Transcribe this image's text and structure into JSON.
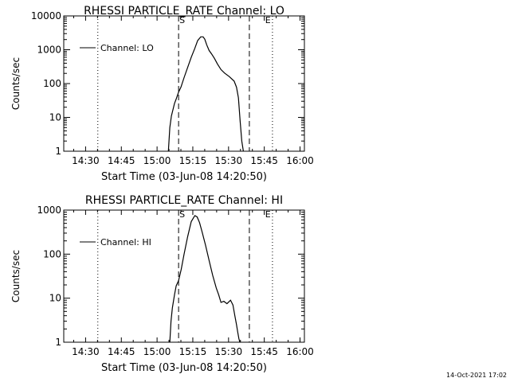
{
  "timestamp": "14-Oct-2021 17:02",
  "chart_data": [
    {
      "type": "line",
      "title": "RHESSI PARTICLE_RATE Channel: LO",
      "xlabel": "Start Time (03-Jun-08 14:20:50)",
      "ylabel": "Counts/sec",
      "x_unit": "minutes since 14:20:50",
      "xlim": [
        0,
        101
      ],
      "ylim": [
        1,
        10000
      ],
      "yscale": "log",
      "x_ticks": [
        "14:30",
        "14:45",
        "15:00",
        "15:15",
        "15:30",
        "15:45",
        "16:00"
      ],
      "y_ticks": [
        "1",
        "10",
        "100",
        "1000",
        "10000"
      ],
      "legend": {
        "label": "Channel: LO",
        "placement": "top-left"
      },
      "markers": {
        "dotted": [
          {
            "label": "",
            "x": 14.3
          },
          {
            "label": "",
            "x": 87.6
          }
        ],
        "dashed": [
          {
            "label": "S",
            "x": 48.2
          },
          {
            "label": "",
            "x": 77.9
          }
        ],
        "event_labels": [
          {
            "label": "S",
            "x": 48.2
          },
          {
            "label": "E",
            "x": 84.2
          }
        ]
      },
      "series": [
        {
          "name": "Channel: LO",
          "x": [
            43.9,
            44.5,
            45.2,
            46.5,
            47.2,
            48.2,
            49.2,
            50.5,
            52.0,
            53.5,
            55.0,
            56.2,
            57.5,
            58.5,
            59.2,
            60.0,
            61.0,
            62.0,
            63.2,
            64.5,
            66.0,
            67.5,
            69.5,
            71.5,
            72.5,
            73.3,
            74.0,
            74.7,
            75.4
          ],
          "y": [
            1.0,
            5.0,
            11.0,
            26.0,
            35.0,
            56.0,
            79.0,
            150.0,
            300.0,
            600.0,
            1100.0,
            1850.0,
            2400.0,
            2400.0,
            2050.0,
            1400.0,
            950.0,
            760.0,
            560.0,
            380.0,
            260.0,
            205.0,
            160.0,
            118.0,
            78.0,
            38.0,
            8.0,
            2.0,
            1.0
          ]
        }
      ]
    },
    {
      "type": "line",
      "title": "RHESSI PARTICLE_RATE Channel: HI",
      "xlabel": "Start Time (03-Jun-08 14:20:50)",
      "ylabel": "Counts/sec",
      "x_unit": "minutes since 14:20:50",
      "xlim": [
        0,
        101
      ],
      "ylim": [
        1,
        1000
      ],
      "yscale": "log",
      "x_ticks": [
        "14:30",
        "14:45",
        "15:00",
        "15:15",
        "15:30",
        "15:45",
        "16:00"
      ],
      "y_ticks": [
        "1",
        "10",
        "100",
        "1000"
      ],
      "legend": {
        "label": "Channel: HI",
        "placement": "top-left"
      },
      "markers": {
        "dotted": [
          {
            "label": "",
            "x": 14.3
          },
          {
            "label": "",
            "x": 87.6
          }
        ],
        "dashed": [
          {
            "label": "S",
            "x": 48.2
          },
          {
            "label": "",
            "x": 77.9
          }
        ],
        "event_labels": [
          {
            "label": "S",
            "x": 48.2
          },
          {
            "label": "E",
            "x": 84.2
          }
        ]
      },
      "series": [
        {
          "name": "Channel: HI",
          "x": [
            44.5,
            45.0,
            45.6,
            46.5,
            47.2,
            48.2,
            49.3,
            50.5,
            52.0,
            53.5,
            55.0,
            56.0,
            57.0,
            58.0,
            59.5,
            61.0,
            62.5,
            64.0,
            65.0,
            66.0,
            67.2,
            68.5,
            70.0,
            71.0,
            71.8,
            72.5,
            73.0,
            73.5,
            73.9
          ],
          "y": [
            1.0,
            3.0,
            6.0,
            12.0,
            19.0,
            25.0,
            45.0,
            100.0,
            250.0,
            550.0,
            750.0,
            700.0,
            520.0,
            330.0,
            160.0,
            72.0,
            33.0,
            17.0,
            12.0,
            8.0,
            8.5,
            7.5,
            9.0,
            7.0,
            4.0,
            2.5,
            1.7,
            1.2,
            1.0
          ]
        }
      ]
    }
  ]
}
